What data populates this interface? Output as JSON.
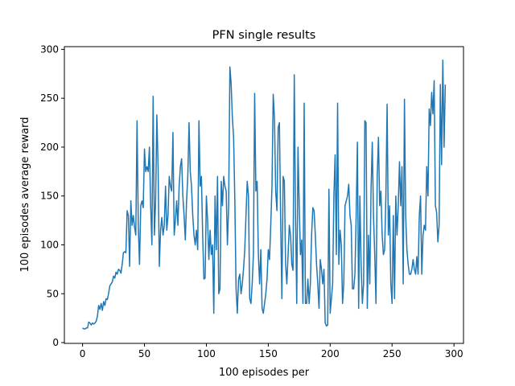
{
  "chart_data": {
    "type": "line",
    "title": "PFN single results",
    "xlabel": "100 episodes per",
    "ylabel": "100 episodes average reward",
    "xlim": [
      -14.7,
      307.7
    ],
    "ylim": [
      -0.8,
      302.8
    ],
    "xticks": [
      0,
      50,
      100,
      150,
      200,
      250,
      300
    ],
    "yticks": [
      0,
      50,
      100,
      150,
      200,
      250,
      300
    ],
    "x": [
      0,
      1,
      2,
      3,
      4,
      5,
      6,
      7,
      8,
      9,
      10,
      11,
      12,
      13,
      14,
      15,
      16,
      17,
      18,
      19,
      20,
      21,
      22,
      23,
      24,
      25,
      26,
      27,
      28,
      29,
      30,
      31,
      32,
      33,
      34,
      35,
      36,
      37,
      38,
      39,
      40,
      41,
      42,
      43,
      44,
      45,
      46,
      47,
      48,
      49,
      50,
      51,
      52,
      53,
      54,
      55,
      56,
      57,
      58,
      59,
      60,
      61,
      62,
      63,
      64,
      65,
      66,
      67,
      68,
      69,
      70,
      71,
      72,
      73,
      74,
      75,
      76,
      77,
      78,
      79,
      80,
      81,
      82,
      83,
      84,
      85,
      86,
      87,
      88,
      89,
      90,
      91,
      92,
      93,
      94,
      95,
      96,
      97,
      98,
      99,
      100,
      101,
      102,
      103,
      104,
      105,
      106,
      107,
      108,
      109,
      110,
      111,
      112,
      113,
      114,
      115,
      116,
      117,
      118,
      119,
      120,
      121,
      122,
      123,
      124,
      125,
      126,
      127,
      128,
      129,
      130,
      131,
      132,
      133,
      134,
      135,
      136,
      137,
      138,
      139,
      140,
      141,
      142,
      143,
      144,
      145,
      146,
      147,
      148,
      149,
      150,
      151,
      152,
      153,
      154,
      155,
      156,
      157,
      158,
      159,
      160,
      161,
      162,
      163,
      164,
      165,
      166,
      167,
      168,
      169,
      170,
      171,
      172,
      173,
      174,
      175,
      176,
      177,
      178,
      179,
      180,
      181,
      182,
      183,
      184,
      185,
      186,
      187,
      188,
      189,
      190,
      191,
      192,
      193,
      194,
      195,
      196,
      197,
      198,
      199,
      200,
      201,
      202,
      203,
      204,
      205,
      206,
      207,
      208,
      209,
      210,
      211,
      212,
      213,
      214,
      215,
      216,
      217,
      218,
      219,
      220,
      221,
      222,
      223,
      224,
      225,
      226,
      227,
      228,
      229,
      230,
      231,
      232,
      233,
      234,
      235,
      236,
      237,
      238,
      239,
      240,
      241,
      242,
      243,
      244,
      245,
      246,
      247,
      248,
      249,
      250,
      251,
      252,
      253,
      254,
      255,
      256,
      257,
      258,
      259,
      260,
      261,
      262,
      263,
      264,
      265,
      266,
      267,
      268,
      269,
      270,
      271,
      272,
      273,
      274,
      275,
      276,
      277,
      278,
      279,
      280,
      281,
      282,
      283,
      284,
      285,
      286,
      287,
      288,
      289,
      290,
      291,
      292,
      293
    ],
    "series": [
      {
        "color": "#1f77b4",
        "values": [
          15,
          14,
          14,
          15,
          15,
          21,
          20,
          18,
          20,
          19,
          20,
          22,
          27,
          38,
          34,
          40,
          33,
          42,
          38,
          45,
          44,
          50,
          58,
          60,
          62,
          68,
          66,
          72,
          70,
          75,
          74,
          71,
          80,
          92,
          93,
          92,
          135,
          130,
          78,
          145,
          120,
          130,
          118,
          110,
          227,
          120,
          80,
          140,
          145,
          138,
          198,
          175,
          180,
          175,
          200,
          140,
          100,
          252,
          110,
          145,
          233,
          180,
          78,
          115,
          128,
          110,
          120,
          160,
          115,
          130,
          170,
          160,
          155,
          215,
          110,
          125,
          145,
          120,
          160,
          180,
          188,
          150,
          130,
          105,
          145,
          170,
          225,
          175,
          160,
          130,
          110,
          100,
          115,
          95,
          227,
          160,
          170,
          110,
          65,
          66,
          150,
          125,
          85,
          115,
          90,
          100,
          30,
          150,
          95,
          170,
          50,
          55,
          165,
          140,
          170,
          160,
          155,
          100,
          140,
          282,
          265,
          230,
          210,
          145,
          55,
          30,
          65,
          70,
          50,
          60,
          75,
          95,
          130,
          165,
          150,
          45,
          40,
          60,
          90,
          255,
          155,
          165,
          90,
          60,
          95,
          35,
          30,
          40,
          50,
          65,
          95,
          85,
          120,
          160,
          254,
          230,
          155,
          135,
          220,
          225,
          125,
          45,
          170,
          165,
          80,
          60,
          90,
          120,
          110,
          80,
          74,
          274,
          130,
          40,
          200,
          140,
          90,
          105,
          40,
          245,
          40,
          40,
          65,
          40,
          60,
          110,
          138,
          135,
          110,
          80,
          60,
          35,
          85,
          75,
          60,
          75,
          20,
          17,
          18,
          157,
          30,
          45,
          60,
          150,
          192,
          90,
          245,
          80,
          115,
          100,
          40,
          60,
          140,
          145,
          150,
          162,
          130,
          120,
          55,
          55,
          70,
          130,
          205,
          35,
          150,
          80,
          40,
          60,
          227,
          225,
          35,
          110,
          60,
          155,
          205,
          130,
          90,
          40,
          170,
          210,
          140,
          155,
          110,
          90,
          95,
          150,
          244,
          110,
          140,
          60,
          40,
          130,
          45,
          150,
          110,
          140,
          185,
          140,
          180,
          60,
          249,
          130,
          95,
          80,
          70,
          70,
          75,
          85,
          75,
          70,
          88,
          70,
          130,
          150,
          70,
          110,
          120,
          115,
          180,
          150,
          239,
          222,
          256,
          234,
          268,
          140,
          133,
          103,
          120,
          264,
          182,
          289,
          200,
          264
        ]
      }
    ]
  }
}
